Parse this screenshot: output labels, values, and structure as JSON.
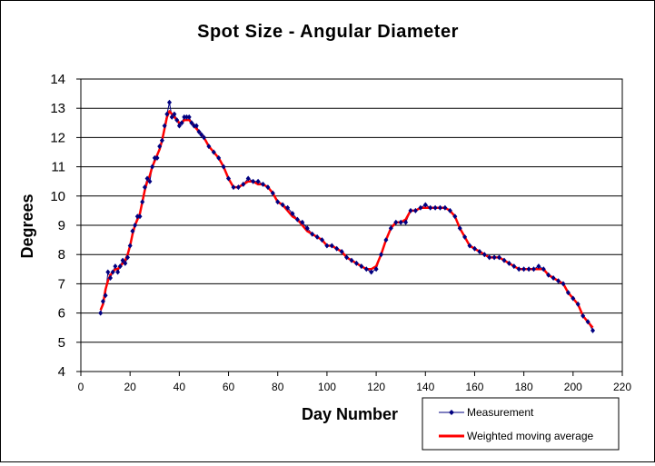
{
  "chart_data": {
    "type": "line",
    "title": "Spot Size - Angular Diameter",
    "xlabel": "Day Number",
    "ylabel": "Degrees",
    "xlim": [
      0,
      220
    ],
    "ylim": [
      4,
      14
    ],
    "x_ticks": [
      0,
      20,
      40,
      60,
      80,
      100,
      120,
      140,
      160,
      180,
      200,
      220
    ],
    "y_ticks": [
      4,
      5,
      6,
      7,
      8,
      9,
      10,
      11,
      12,
      13,
      14
    ],
    "grid": "horizontal",
    "legend_position": "bottom-right",
    "series": [
      {
        "name": "Measurement",
        "color": "#000080",
        "marker": "diamond",
        "x": [
          8,
          9,
          10,
          11,
          12,
          13,
          14,
          15,
          16,
          17,
          18,
          19,
          20,
          21,
          22,
          23,
          24,
          25,
          26,
          27,
          28,
          29,
          30,
          31,
          32,
          33,
          34,
          35,
          36,
          37,
          38,
          39,
          40,
          41,
          42,
          43,
          44,
          45,
          46,
          47,
          48,
          49,
          50,
          52,
          54,
          56,
          58,
          60,
          62,
          64,
          66,
          68,
          70,
          72,
          74,
          76,
          78,
          80,
          82,
          84,
          86,
          88,
          90,
          92,
          94,
          96,
          98,
          100,
          102,
          104,
          106,
          108,
          110,
          112,
          114,
          116,
          118,
          120,
          122,
          124,
          126,
          128,
          130,
          132,
          134,
          136,
          138,
          140,
          142,
          144,
          146,
          148,
          150,
          152,
          154,
          156,
          158,
          160,
          162,
          164,
          166,
          168,
          170,
          172,
          174,
          176,
          178,
          180,
          182,
          184,
          186,
          188,
          190,
          192,
          194,
          196,
          198,
          200,
          202,
          204,
          206,
          208
        ],
        "y": [
          6.0,
          6.4,
          6.6,
          7.4,
          7.2,
          7.4,
          7.6,
          7.4,
          7.6,
          7.8,
          7.7,
          7.9,
          8.3,
          8.8,
          9.0,
          9.3,
          9.3,
          9.8,
          10.3,
          10.6,
          10.5,
          11.0,
          11.3,
          11.3,
          11.7,
          11.9,
          12.4,
          12.8,
          13.2,
          12.7,
          12.8,
          12.6,
          12.4,
          12.5,
          12.7,
          12.7,
          12.7,
          12.5,
          12.4,
          12.4,
          12.2,
          12.1,
          12.0,
          11.7,
          11.5,
          11.3,
          11.0,
          10.6,
          10.3,
          10.3,
          10.4,
          10.6,
          10.5,
          10.5,
          10.4,
          10.3,
          10.1,
          9.8,
          9.7,
          9.6,
          9.4,
          9.2,
          9.1,
          8.9,
          8.7,
          8.6,
          8.5,
          8.3,
          8.3,
          8.2,
          8.1,
          7.9,
          7.8,
          7.7,
          7.6,
          7.5,
          7.4,
          7.5,
          8.0,
          8.5,
          8.9,
          9.1,
          9.1,
          9.1,
          9.5,
          9.5,
          9.6,
          9.7,
          9.6,
          9.6,
          9.6,
          9.6,
          9.5,
          9.3,
          8.9,
          8.6,
          8.3,
          8.2,
          8.1,
          8.0,
          7.9,
          7.9,
          7.9,
          7.8,
          7.7,
          7.6,
          7.5,
          7.5,
          7.5,
          7.5,
          7.6,
          7.5,
          7.3,
          7.2,
          7.1,
          7.0,
          6.7,
          6.5,
          6.3,
          5.9,
          5.7,
          5.4
        ]
      },
      {
        "name": "Weighted moving average",
        "color": "#ff0000",
        "x": [
          8,
          9,
          10,
          11,
          12,
          13,
          14,
          15,
          16,
          17,
          18,
          19,
          20,
          21,
          22,
          23,
          24,
          25,
          26,
          27,
          28,
          29,
          30,
          31,
          32,
          33,
          34,
          35,
          36,
          37,
          38,
          39,
          40,
          41,
          42,
          43,
          44,
          45,
          46,
          47,
          48,
          49,
          50,
          52,
          54,
          56,
          58,
          60,
          62,
          64,
          66,
          68,
          70,
          72,
          74,
          76,
          78,
          80,
          82,
          84,
          86,
          88,
          90,
          92,
          94,
          96,
          98,
          100,
          102,
          104,
          106,
          108,
          110,
          112,
          114,
          116,
          118,
          120,
          122,
          124,
          126,
          128,
          130,
          132,
          134,
          136,
          138,
          140,
          142,
          144,
          146,
          148,
          150,
          152,
          154,
          156,
          158,
          160,
          162,
          164,
          166,
          168,
          170,
          172,
          174,
          176,
          178,
          180,
          182,
          184,
          186,
          188,
          190,
          192,
          194,
          196,
          198,
          200,
          202,
          204,
          206,
          208
        ],
        "y": [
          6.1,
          6.3,
          6.8,
          7.1,
          7.3,
          7.4,
          7.5,
          7.5,
          7.6,
          7.7,
          7.8,
          8.0,
          8.3,
          8.7,
          9.0,
          9.2,
          9.4,
          9.8,
          10.2,
          10.5,
          10.7,
          11.0,
          11.2,
          11.4,
          11.6,
          11.9,
          12.3,
          12.7,
          12.9,
          12.8,
          12.7,
          12.6,
          12.5,
          12.5,
          12.6,
          12.6,
          12.6,
          12.5,
          12.4,
          12.3,
          12.2,
          12.1,
          12.0,
          11.7,
          11.5,
          11.3,
          11.0,
          10.6,
          10.3,
          10.3,
          10.4,
          10.5,
          10.5,
          10.4,
          10.4,
          10.3,
          10.1,
          9.8,
          9.7,
          9.5,
          9.3,
          9.2,
          9.0,
          8.8,
          8.7,
          8.6,
          8.5,
          8.3,
          8.3,
          8.2,
          8.1,
          7.9,
          7.8,
          7.7,
          7.6,
          7.5,
          7.5,
          7.6,
          8.0,
          8.5,
          8.9,
          9.1,
          9.1,
          9.2,
          9.5,
          9.5,
          9.6,
          9.6,
          9.6,
          9.6,
          9.6,
          9.6,
          9.5,
          9.3,
          8.9,
          8.6,
          8.3,
          8.2,
          8.1,
          8.0,
          7.9,
          7.9,
          7.9,
          7.8,
          7.7,
          7.6,
          7.5,
          7.5,
          7.5,
          7.5,
          7.5,
          7.5,
          7.3,
          7.2,
          7.1,
          7.0,
          6.7,
          6.5,
          6.3,
          5.9,
          5.7,
          5.5
        ]
      }
    ]
  }
}
